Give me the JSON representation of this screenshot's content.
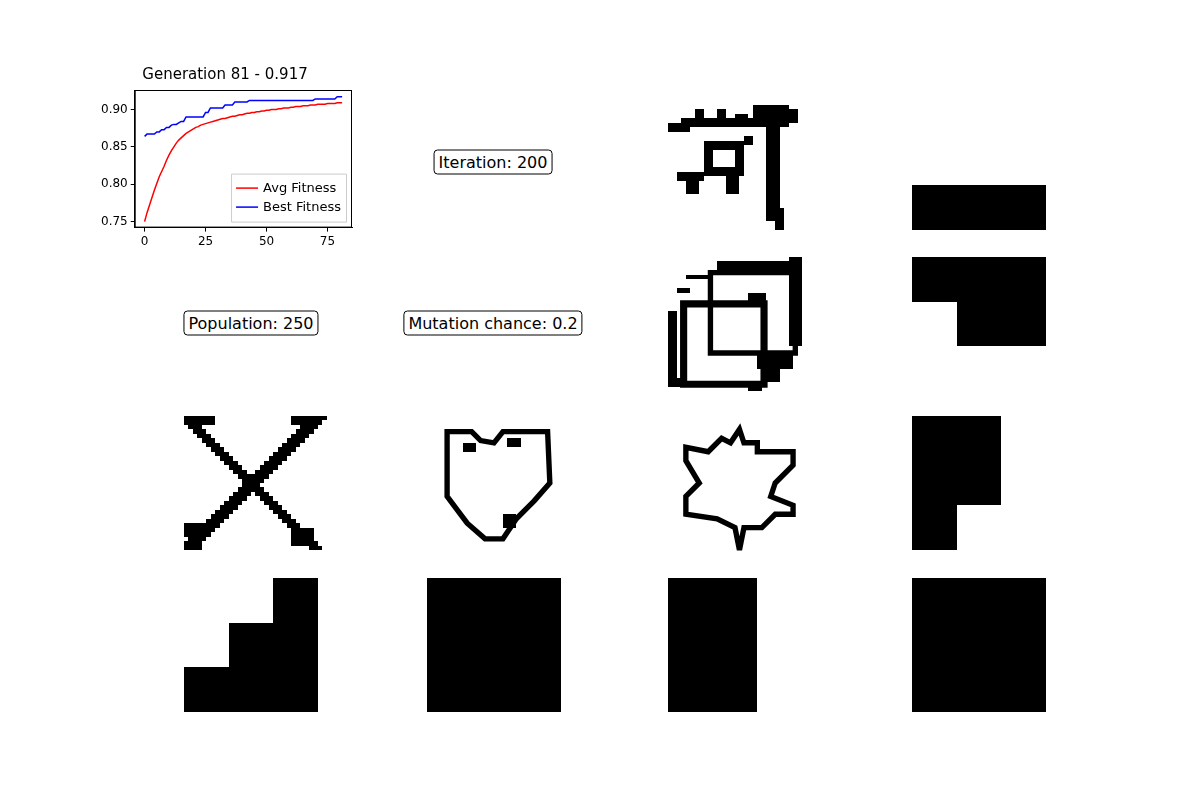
{
  "chart_data": {
    "type": "line",
    "title": "Generation 81 - 0.917",
    "x": [
      0,
      1,
      2,
      3,
      4,
      5,
      6,
      7,
      8,
      9,
      10,
      11,
      12,
      13,
      14,
      15,
      16,
      17,
      18,
      19,
      20,
      21,
      22,
      23,
      24,
      25,
      26,
      27,
      28,
      29,
      30,
      31,
      32,
      33,
      34,
      35,
      36,
      37,
      38,
      39,
      40,
      41,
      42,
      43,
      44,
      45,
      46,
      47,
      48,
      49,
      50,
      51,
      52,
      53,
      54,
      55,
      56,
      57,
      58,
      59,
      60,
      61,
      62,
      63,
      64,
      65,
      66,
      67,
      68,
      69,
      70,
      71,
      72,
      73,
      74,
      75,
      76,
      77,
      78,
      79,
      80,
      81
    ],
    "series": [
      {
        "name": "Avg Fitness",
        "color": "#ff0000",
        "values": [
          0.75,
          0.762,
          0.772,
          0.782,
          0.792,
          0.801,
          0.81,
          0.817,
          0.824,
          0.832,
          0.839,
          0.845,
          0.85,
          0.855,
          0.859,
          0.862,
          0.865,
          0.868,
          0.87,
          0.872,
          0.874,
          0.876,
          0.877,
          0.879,
          0.88,
          0.881,
          0.882,
          0.883,
          0.884,
          0.885,
          0.886,
          0.887,
          0.888,
          0.888,
          0.889,
          0.89,
          0.891,
          0.891,
          0.892,
          0.893,
          0.893,
          0.894,
          0.895,
          0.895,
          0.896,
          0.896,
          0.897,
          0.897,
          0.898,
          0.898,
          0.899,
          0.899,
          0.9,
          0.9,
          0.9,
          0.901,
          0.901,
          0.902,
          0.902,
          0.902,
          0.903,
          0.903,
          0.904,
          0.904,
          0.904,
          0.905,
          0.905,
          0.905,
          0.906,
          0.906,
          0.906,
          0.907,
          0.907,
          0.907,
          0.907,
          0.908,
          0.908,
          0.908,
          0.908,
          0.909,
          0.909,
          0.909
        ]
      },
      {
        "name": "Best Fitness",
        "color": "#0000ff",
        "values": [
          0.864,
          0.867,
          0.867,
          0.867,
          0.867,
          0.87,
          0.87,
          0.873,
          0.873,
          0.876,
          0.876,
          0.879,
          0.88,
          0.88,
          0.882,
          0.884,
          0.884,
          0.89,
          0.89,
          0.89,
          0.89,
          0.89,
          0.89,
          0.89,
          0.89,
          0.896,
          0.896,
          0.902,
          0.902,
          0.902,
          0.902,
          0.902,
          0.902,
          0.906,
          0.906,
          0.906,
          0.906,
          0.91,
          0.91,
          0.91,
          0.91,
          0.91,
          0.91,
          0.912,
          0.912,
          0.912,
          0.912,
          0.912,
          0.912,
          0.912,
          0.912,
          0.912,
          0.912,
          0.912,
          0.912,
          0.912,
          0.912,
          0.912,
          0.912,
          0.912,
          0.912,
          0.912,
          0.912,
          0.912,
          0.912,
          0.912,
          0.912,
          0.912,
          0.912,
          0.912,
          0.914,
          0.914,
          0.914,
          0.914,
          0.914,
          0.914,
          0.914,
          0.914,
          0.914,
          0.917,
          0.917,
          0.917
        ]
      }
    ],
    "xlim": [
      -4.05,
      85.05
    ],
    "xticks": [
      0,
      25,
      50,
      75
    ],
    "ylim": [
      0.742,
      0.926
    ],
    "yticks": [
      {
        "value": 0.75,
        "label": "0.75"
      },
      {
        "value": 0.8,
        "label": "0.80"
      },
      {
        "value": 0.85,
        "label": "0.85"
      },
      {
        "value": 0.9,
        "label": "0.90"
      }
    ],
    "grid": false,
    "legend": "lower right"
  },
  "annotations": [
    "Iteration: 200",
    "Population: 250",
    "Mutation chance: 0.2"
  ]
}
